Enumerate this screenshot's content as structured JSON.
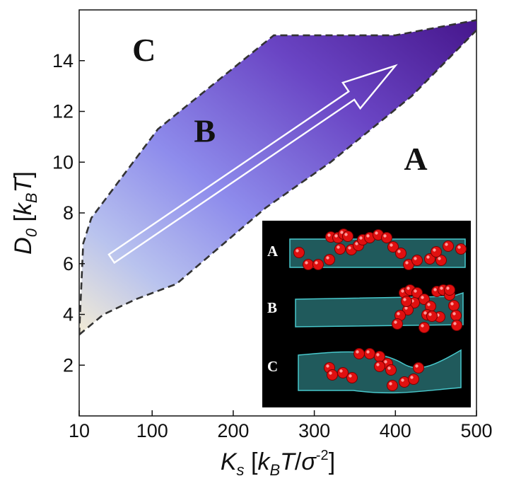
{
  "chart_data": {
    "type": "area",
    "title": "",
    "xlabel": "K_s [k_B T / σ^-2]",
    "ylabel": "D_0 [k_B T]",
    "xlabel_parts": {
      "var": "K",
      "sub": "s",
      "unit_open": "[",
      "unit_k": "k",
      "unit_ksub": "B",
      "unit_T": "T",
      "unit_sep": "/",
      "unit_sigma": "σ",
      "unit_exp": "-2",
      "unit_close": "]"
    },
    "ylabel_parts": {
      "var": "D",
      "sub": "0",
      "unit_open": "[",
      "unit_k": "k",
      "unit_ksub": "B",
      "unit_T": "T",
      "unit_close": "]"
    },
    "xlim": [
      10,
      500
    ],
    "ylim": [
      0,
      16
    ],
    "x_ticks": [
      10,
      100,
      200,
      300,
      400,
      500
    ],
    "y_ticks": [
      2,
      4,
      6,
      8,
      10,
      12,
      14
    ],
    "grid": false,
    "upper_boundary": [
      [
        10,
        3.2
      ],
      [
        15,
        6.8
      ],
      [
        25,
        7.8
      ],
      [
        107,
        11.3
      ],
      [
        250,
        15.0
      ],
      [
        400,
        15.0
      ],
      [
        500,
        15.6
      ]
    ],
    "lower_boundary": [
      [
        10,
        3.2
      ],
      [
        40,
        4.0
      ],
      [
        80,
        4.6
      ],
      [
        130,
        5.2
      ],
      [
        240,
        8.2
      ],
      [
        320,
        10.0
      ],
      [
        420,
        12.6
      ],
      [
        500,
        15.2
      ]
    ],
    "regions": [
      {
        "label": "A",
        "x": 425,
        "y": 9.7
      },
      {
        "label": "B",
        "x": 165,
        "y": 10.8
      },
      {
        "label": "C",
        "x": 90,
        "y": 14.0
      }
    ],
    "arrow": {
      "from": [
        50,
        6.2
      ],
      "to": [
        400,
        13.8
      ],
      "color": "#ffffff"
    },
    "inset": {
      "background": "#000000",
      "tube_color": "#48c8cc",
      "bead_color": "#e01010",
      "rows": [
        {
          "label": "A"
        },
        {
          "label": "B"
        },
        {
          "label": "C"
        }
      ]
    },
    "colors": {
      "low": "#f3ecd5",
      "mid": "#8f8ef0",
      "high": "#4a1a92",
      "boundary": "#333333"
    }
  }
}
